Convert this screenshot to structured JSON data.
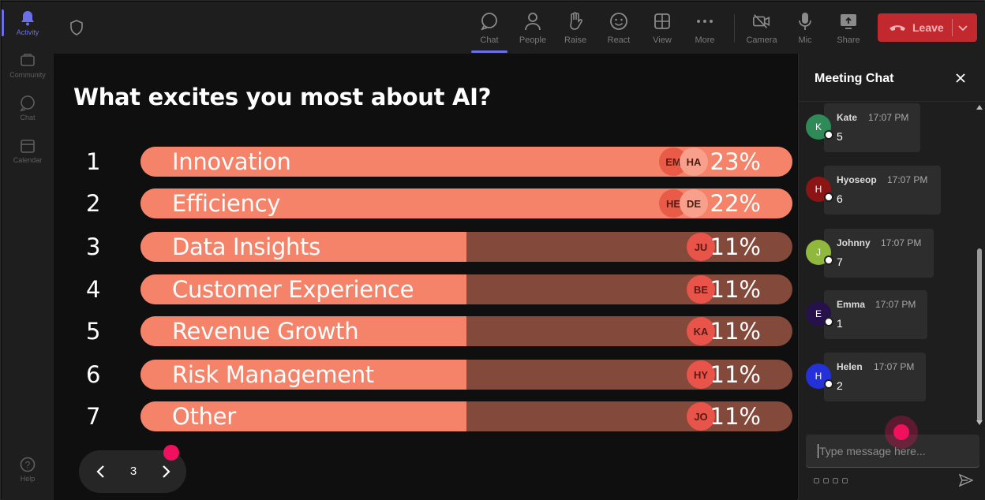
{
  "rail": {
    "items": [
      {
        "label": "Activity",
        "icon": "bell-icon",
        "active": true
      },
      {
        "label": "Community",
        "icon": "community-icon"
      },
      {
        "label": "Chat",
        "icon": "chat-icon"
      },
      {
        "label": "Calendar",
        "icon": "calendar-icon"
      }
    ],
    "help": {
      "label": "Help",
      "icon": "help-icon"
    }
  },
  "toolbar": {
    "buttons": [
      {
        "label": "Chat",
        "icon": "chat-bubble-icon",
        "active": true
      },
      {
        "label": "People",
        "icon": "person-icon"
      },
      {
        "label": "Raise",
        "icon": "hand-icon"
      },
      {
        "label": "React",
        "icon": "smile-icon"
      },
      {
        "label": "View",
        "icon": "grid-icon"
      },
      {
        "label": "More",
        "icon": "more-icon"
      },
      {
        "label": "Camera",
        "icon": "camera-off-icon"
      },
      {
        "label": "Mic",
        "icon": "mic-icon"
      },
      {
        "label": "Share",
        "icon": "share-icon"
      }
    ],
    "leave_label": "Leave",
    "leave_color": "#c2292f"
  },
  "poll": {
    "question": "What excites you most about AI?",
    "options": [
      {
        "num": "1",
        "label": "Innovation",
        "percent": "23%",
        "fill": 1.0,
        "avatars": [
          "EM",
          "HA"
        ]
      },
      {
        "num": "2",
        "label": "Efficiency",
        "percent": "22%",
        "fill": 1.0,
        "avatars": [
          "HE",
          "DE"
        ]
      },
      {
        "num": "3",
        "label": "Data Insights",
        "percent": "11%",
        "fill": 0.5,
        "avatars": [
          "JU"
        ]
      },
      {
        "num": "4",
        "label": "Customer Experience",
        "percent": "11%",
        "fill": 0.5,
        "avatars": [
          "BE"
        ]
      },
      {
        "num": "5",
        "label": "Revenue Growth",
        "percent": "11%",
        "fill": 0.5,
        "avatars": [
          "KA"
        ]
      },
      {
        "num": "6",
        "label": "Risk Management",
        "percent": "11%",
        "fill": 0.5,
        "avatars": [
          "HY"
        ]
      },
      {
        "num": "7",
        "label": "Other",
        "percent": "11%",
        "fill": 0.5,
        "avatars": [
          "JO"
        ]
      }
    ],
    "bar_color": "#f58369",
    "track_color": "#83493a",
    "page": "3"
  },
  "chat": {
    "title": "Meeting Chat",
    "messages": [
      {
        "initial": "K",
        "name": "Kate",
        "time": "17:07 PM",
        "text": "5",
        "color": "#2e8a57"
      },
      {
        "initial": "H",
        "name": "Hyoseop",
        "time": "17:07 PM",
        "text": "6",
        "color": "#8c1414"
      },
      {
        "initial": "J",
        "name": "Johnny",
        "time": "17:07 PM",
        "text": "7",
        "color": "#8fb83c"
      },
      {
        "initial": "E",
        "name": "Emma",
        "time": "17:07 PM",
        "text": "1",
        "color": "#26114a"
      },
      {
        "initial": "H",
        "name": "Helen",
        "time": "17:07 PM",
        "text": "2",
        "color": "#2430d8"
      }
    ],
    "placeholder": "Type message here..."
  }
}
